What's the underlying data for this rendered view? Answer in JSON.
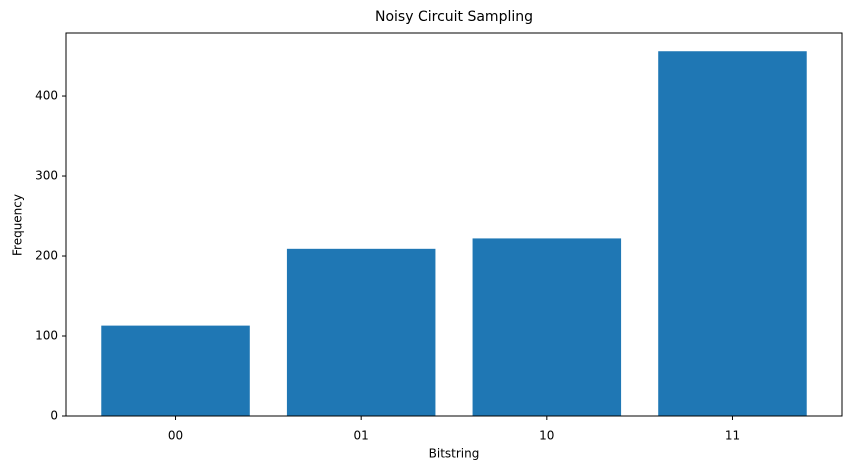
{
  "chart_data": {
    "type": "bar",
    "title": "Noisy Circuit Sampling",
    "x_label": "Bitstring",
    "y_label": "Frequency",
    "categories": [
      "00",
      "01",
      "10",
      "11"
    ],
    "values": [
      113,
      209,
      222,
      456
    ],
    "color": "#1f77b4",
    "ylim": [
      0,
      478.8
    ],
    "yticks": [
      0,
      100,
      200,
      300,
      400
    ],
    "grid": false
  }
}
